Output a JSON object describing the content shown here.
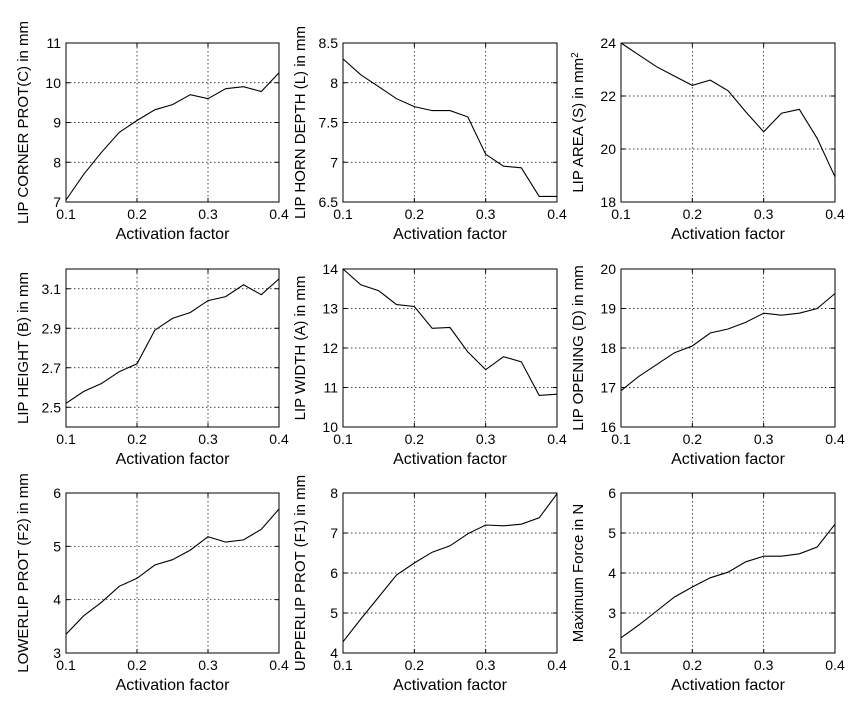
{
  "chart_data": [
    {
      "type": "line",
      "xlabel": "Activation factor",
      "ylabel": "LIP CORNER PROT(C) in mm",
      "xlim": [
        0.1,
        0.4
      ],
      "ylim": [
        7,
        11
      ],
      "xticks": [
        "0.1",
        "0.2",
        "0.3",
        "0.4"
      ],
      "yticks": [
        "7",
        "8",
        "9",
        "10",
        "11"
      ],
      "grid": true,
      "x": [
        0.1,
        0.125,
        0.15,
        0.175,
        0.2,
        0.225,
        0.25,
        0.275,
        0.3,
        0.325,
        0.35,
        0.375,
        0.4
      ],
      "values": [
        7.05,
        7.7,
        8.25,
        8.75,
        9.05,
        9.32,
        9.45,
        9.7,
        9.6,
        9.85,
        9.9,
        9.78,
        10.25
      ]
    },
    {
      "type": "line",
      "xlabel": "Activation factor",
      "ylabel": "LIP HORN DEPTH (L) in mm",
      "xlim": [
        0.1,
        0.4
      ],
      "ylim": [
        6.5,
        8.5
      ],
      "xticks": [
        "0.1",
        "0.2",
        "0.3",
        "0.4"
      ],
      "yticks": [
        "6.5",
        "7",
        "7.5",
        "8",
        "8.5"
      ],
      "grid": true,
      "x": [
        0.1,
        0.125,
        0.15,
        0.175,
        0.2,
        0.225,
        0.25,
        0.275,
        0.3,
        0.325,
        0.35,
        0.375,
        0.4
      ],
      "values": [
        8.3,
        8.1,
        7.95,
        7.8,
        7.7,
        7.65,
        7.65,
        7.57,
        7.1,
        6.95,
        6.93,
        6.57,
        6.57
      ]
    },
    {
      "type": "line",
      "xlabel": "Activation factor",
      "ylabel": "LIP AREA (S) in mm",
      "ylabel_sup": "2",
      "xlim": [
        0.1,
        0.4
      ],
      "ylim": [
        18,
        24
      ],
      "xticks": [
        "0.1",
        "0.2",
        "0.3",
        "0.4"
      ],
      "yticks": [
        "18",
        "20",
        "22",
        "24"
      ],
      "grid": true,
      "x": [
        0.1,
        0.125,
        0.15,
        0.175,
        0.2,
        0.225,
        0.25,
        0.275,
        0.3,
        0.325,
        0.35,
        0.375,
        0.4
      ],
      "values": [
        24,
        23.55,
        23.1,
        22.75,
        22.4,
        22.6,
        22.2,
        21.4,
        20.65,
        21.35,
        21.5,
        20.4,
        18.95
      ]
    },
    {
      "type": "line",
      "xlabel": "Activation factor",
      "ylabel": "LIP HEIGHT (B) in mm",
      "xlim": [
        0.1,
        0.4
      ],
      "ylim": [
        2.4,
        3.2
      ],
      "xticks": [
        "0.1",
        "0.2",
        "0.3",
        "0.4"
      ],
      "yticks": [
        "2.5",
        "2.7",
        "2.9",
        "3.1"
      ],
      "grid": true,
      "x": [
        0.1,
        0.125,
        0.15,
        0.175,
        0.2,
        0.225,
        0.25,
        0.275,
        0.3,
        0.325,
        0.35,
        0.375,
        0.4
      ],
      "values": [
        2.52,
        2.58,
        2.62,
        2.68,
        2.72,
        2.89,
        2.95,
        2.98,
        3.04,
        3.06,
        3.12,
        3.07,
        3.15
      ]
    },
    {
      "type": "line",
      "xlabel": "Activation factor",
      "ylabel": "LIP WIDTH (A) in mm",
      "xlim": [
        0.1,
        0.4
      ],
      "ylim": [
        10,
        14
      ],
      "xticks": [
        "0.1",
        "0.2",
        "0.3",
        "0.4"
      ],
      "yticks": [
        "10",
        "11",
        "12",
        "13",
        "14"
      ],
      "grid": true,
      "x": [
        0.1,
        0.125,
        0.15,
        0.175,
        0.2,
        0.225,
        0.25,
        0.275,
        0.3,
        0.325,
        0.35,
        0.375,
        0.4
      ],
      "values": [
        14,
        13.6,
        13.45,
        13.1,
        13.05,
        12.5,
        12.52,
        11.9,
        11.45,
        11.78,
        11.65,
        10.8,
        10.83
      ]
    },
    {
      "type": "line",
      "xlabel": "Activation factor",
      "ylabel": "LIP OPENING (D) in mm",
      "xlim": [
        0.1,
        0.4
      ],
      "ylim": [
        16,
        20
      ],
      "xticks": [
        "0.1",
        "0.2",
        "0.3",
        "0.4"
      ],
      "yticks": [
        "16",
        "17",
        "18",
        "19",
        "20"
      ],
      "grid": true,
      "x": [
        0.1,
        0.125,
        0.15,
        0.175,
        0.2,
        0.225,
        0.25,
        0.275,
        0.3,
        0.325,
        0.35,
        0.375,
        0.4
      ],
      "values": [
        16.92,
        17.28,
        17.58,
        17.88,
        18.05,
        18.38,
        18.48,
        18.65,
        18.88,
        18.83,
        18.88,
        19,
        19.38
      ]
    },
    {
      "type": "line",
      "xlabel": "Activation factor",
      "ylabel": "LOWERLIP PROT (F2) in mm",
      "xlim": [
        0.1,
        0.4
      ],
      "ylim": [
        3,
        6
      ],
      "xticks": [
        "0.1",
        "0.2",
        "0.3",
        "0.4"
      ],
      "yticks": [
        "3",
        "4",
        "5",
        "6"
      ],
      "grid": true,
      "x": [
        0.1,
        0.125,
        0.15,
        0.175,
        0.2,
        0.225,
        0.25,
        0.275,
        0.3,
        0.325,
        0.35,
        0.375,
        0.4
      ],
      "values": [
        3.35,
        3.7,
        3.95,
        4.25,
        4.4,
        4.65,
        4.75,
        4.93,
        5.18,
        5.08,
        5.12,
        5.32,
        5.7
      ]
    },
    {
      "type": "line",
      "xlabel": "Activation factor",
      "ylabel": "UPPERLIP PROT (F1) in mm",
      "xlim": [
        0.1,
        0.4
      ],
      "ylim": [
        4,
        8
      ],
      "xticks": [
        "0.1",
        "0.2",
        "0.3",
        "0.4"
      ],
      "yticks": [
        "4",
        "5",
        "6",
        "7",
        "8"
      ],
      "grid": true,
      "x": [
        0.1,
        0.125,
        0.15,
        0.175,
        0.2,
        0.225,
        0.25,
        0.275,
        0.3,
        0.325,
        0.35,
        0.375,
        0.4
      ],
      "values": [
        4.28,
        4.85,
        5.4,
        5.95,
        6.25,
        6.52,
        6.68,
        6.98,
        7.2,
        7.18,
        7.22,
        7.38,
        7.98
      ]
    },
    {
      "type": "line",
      "xlabel": "Activation factor",
      "ylabel": "Maximum Force in N",
      "xlim": [
        0.1,
        0.4
      ],
      "ylim": [
        2,
        6
      ],
      "xticks": [
        "0.1",
        "0.2",
        "0.3",
        "0.4"
      ],
      "yticks": [
        "2",
        "3",
        "4",
        "5",
        "6"
      ],
      "grid": true,
      "x": [
        0.1,
        0.125,
        0.15,
        0.175,
        0.2,
        0.225,
        0.25,
        0.275,
        0.3,
        0.325,
        0.35,
        0.375,
        0.4
      ],
      "values": [
        2.38,
        2.7,
        3.05,
        3.4,
        3.65,
        3.88,
        4.02,
        4.28,
        4.42,
        4.42,
        4.48,
        4.65,
        5.22
      ]
    }
  ]
}
